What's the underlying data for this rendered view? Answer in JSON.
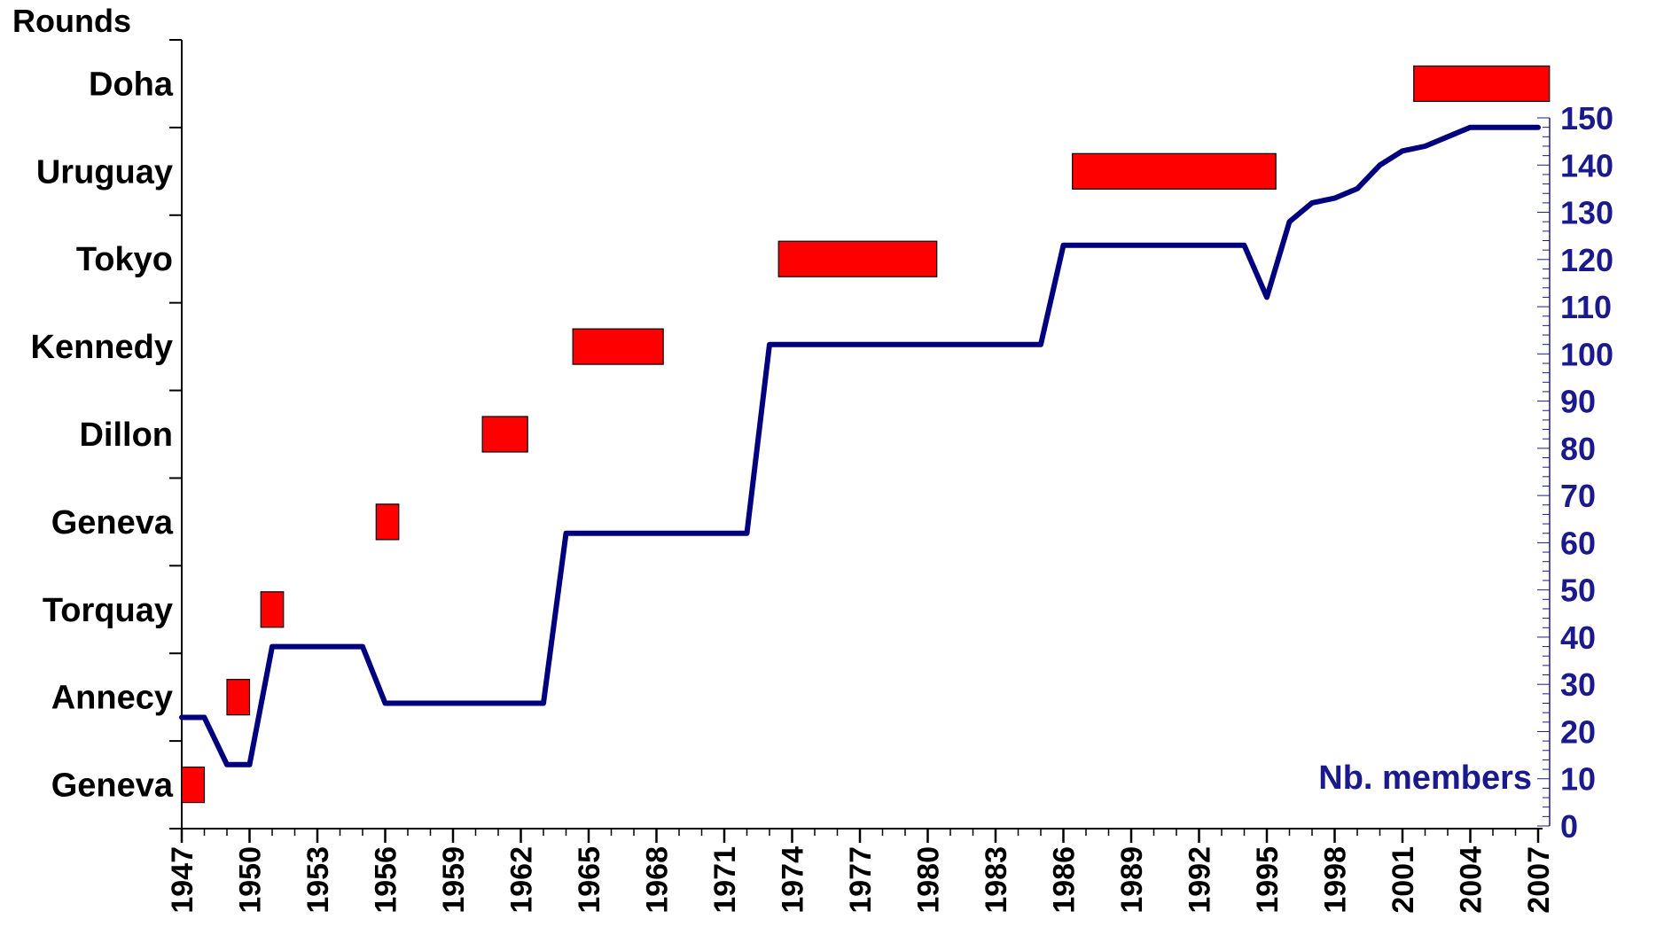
{
  "chart_data": {
    "type": "gantt-line",
    "left_axis_title": "Rounds",
    "right_axis_label": "Nb. members",
    "x_ticks": [
      "1947",
      "1950",
      "1953",
      "1956",
      "1959",
      "1962",
      "1965",
      "1968",
      "1971",
      "1974",
      "1977",
      "1980",
      "1983",
      "1986",
      "1989",
      "1992",
      "1995",
      "1998",
      "2001",
      "2004",
      "2007"
    ],
    "xlim": [
      1947,
      2007
    ],
    "ylim_right": [
      0,
      150
    ],
    "right_ticks": [
      0,
      10,
      20,
      30,
      40,
      50,
      60,
      70,
      80,
      90,
      100,
      110,
      120,
      130,
      140,
      150
    ],
    "rounds": [
      {
        "label": "Geneva",
        "start": 1947.0,
        "end": 1948.0
      },
      {
        "label": "Annecy",
        "start": 1949.0,
        "end": 1950.0
      },
      {
        "label": "Torquay",
        "start": 1950.5,
        "end": 1951.5
      },
      {
        "label": "Geneva",
        "start": 1955.6,
        "end": 1956.6
      },
      {
        "label": "Dillon",
        "start": 1960.3,
        "end": 1962.3
      },
      {
        "label": "Kennedy",
        "start": 1964.3,
        "end": 1968.3
      },
      {
        "label": "Tokyo",
        "start": 1973.4,
        "end": 1980.4
      },
      {
        "label": "Uruguay",
        "start": 1986.4,
        "end": 1995.4
      },
      {
        "label": "Doha",
        "start": 2001.5,
        "end": 2007.5
      }
    ],
    "series": [
      {
        "name": "Nb. members",
        "x": [
          1947,
          1948,
          1949,
          1950,
          1951,
          1952,
          1953,
          1954,
          1955,
          1956,
          1957,
          1958,
          1959,
          1960,
          1961,
          1962,
          1963,
          1964,
          1965,
          1966,
          1967,
          1968,
          1969,
          1970,
          1971,
          1972,
          1973,
          1974,
          1975,
          1976,
          1977,
          1978,
          1979,
          1980,
          1981,
          1982,
          1983,
          1984,
          1985,
          1986,
          1987,
          1988,
          1989,
          1990,
          1991,
          1992,
          1993,
          1994,
          1995,
          1996,
          1997,
          1998,
          1999,
          2000,
          2001,
          2002,
          2003,
          2004,
          2005,
          2006,
          2007
        ],
        "y": [
          23,
          23,
          13,
          13,
          38,
          38,
          38,
          38,
          38,
          26,
          26,
          26,
          26,
          26,
          26,
          26,
          26,
          62,
          62,
          62,
          62,
          62,
          62,
          62,
          62,
          62,
          102,
          102,
          102,
          102,
          102,
          102,
          102,
          102,
          102,
          102,
          102,
          102,
          102,
          123,
          123,
          123,
          123,
          123,
          123,
          123,
          123,
          123,
          112,
          128,
          132,
          133,
          135,
          140,
          143,
          144,
          146,
          148,
          148,
          148,
          148
        ],
        "color": "#00007f"
      }
    ],
    "colors": {
      "bar_fill": "#ff0000",
      "line": "#00007f",
      "left_text": "#000000",
      "right_text": "#1a1a8c"
    }
  }
}
